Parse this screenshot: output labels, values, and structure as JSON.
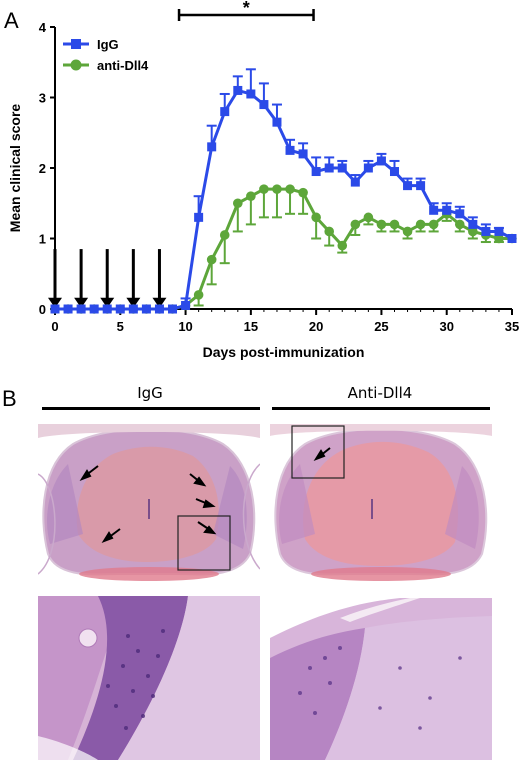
{
  "panel_a_letter": "A",
  "panel_b_letter": "B",
  "colors": {
    "igg": "#2b4ae8",
    "anti_dll4": "#5da63a"
  },
  "chart_data": {
    "type": "line",
    "xlabel": "Days post-immunization",
    "ylabel": "Mean clinical score",
    "xlim": [
      0,
      35
    ],
    "ylim": [
      0,
      4
    ],
    "x_ticks": [
      0,
      5,
      10,
      15,
      20,
      25,
      30,
      35
    ],
    "y_ticks": [
      0,
      1,
      2,
      3,
      4
    ],
    "legend_position": "top-left",
    "significance_bracket": {
      "label": "*",
      "x_start": 9.5,
      "x_end": 19.8
    },
    "injection_arrows_days": [
      0,
      2,
      4,
      6,
      8
    ],
    "series": [
      {
        "name": "IgG",
        "marker": "square",
        "x": [
          0,
          1,
          2,
          3,
          4,
          5,
          6,
          7,
          8,
          9,
          10,
          11,
          12,
          13,
          14,
          15,
          16,
          17,
          18,
          19,
          20,
          21,
          22,
          23,
          24,
          25,
          26,
          27,
          28,
          29,
          30,
          31,
          32,
          33,
          34,
          35
        ],
        "values": [
          0,
          0,
          0,
          0,
          0,
          0,
          0,
          0,
          0,
          0,
          0.05,
          1.3,
          2.3,
          2.8,
          3.1,
          3.05,
          2.9,
          2.65,
          2.25,
          2.2,
          1.95,
          2.0,
          2.0,
          1.8,
          2.0,
          2.1,
          1.95,
          1.75,
          1.75,
          1.4,
          1.4,
          1.35,
          1.2,
          1.1,
          1.1,
          1.0
        ],
        "errors": [
          0,
          0,
          0,
          0,
          0,
          0,
          0,
          0,
          0,
          0,
          0.1,
          0.3,
          0.3,
          0.25,
          0.2,
          0.35,
          0.3,
          0.25,
          0.15,
          0.15,
          0.2,
          0.15,
          0.1,
          0.1,
          0.1,
          0.1,
          0.15,
          0.1,
          0.1,
          0.1,
          0.1,
          0.1,
          0.1,
          0.1,
          0.05,
          0
        ]
      },
      {
        "name": "anti-Dll4",
        "marker": "circle",
        "x": [
          0,
          1,
          2,
          3,
          4,
          5,
          6,
          7,
          8,
          9,
          10,
          11,
          12,
          13,
          14,
          15,
          16,
          17,
          18,
          19,
          20,
          21,
          22,
          23,
          24,
          25,
          26,
          27,
          28,
          29,
          30,
          31,
          32,
          33,
          34,
          35
        ],
        "values": [
          0,
          0,
          0,
          0,
          0,
          0,
          0,
          0,
          0,
          0,
          0.05,
          0.2,
          0.7,
          1.05,
          1.5,
          1.6,
          1.7,
          1.7,
          1.7,
          1.65,
          1.3,
          1.1,
          0.9,
          1.2,
          1.3,
          1.2,
          1.2,
          1.1,
          1.2,
          1.2,
          1.35,
          1.2,
          1.1,
          1.05,
          1.0,
          1.0
        ],
        "errors": [
          0,
          0,
          0,
          0,
          0,
          0,
          0,
          0,
          0,
          0,
          0,
          0.15,
          0.35,
          0.4,
          0.4,
          0.4,
          0.4,
          0.4,
          0.35,
          0.3,
          0.3,
          0.2,
          0.1,
          0.15,
          0.1,
          0.1,
          0.1,
          0.1,
          0.1,
          0.1,
          0.1,
          0.1,
          0.1,
          0.1,
          0.05,
          0
        ]
      }
    ]
  },
  "histology": {
    "left_title": "IgG",
    "right_title": "Anti-Dll4"
  }
}
